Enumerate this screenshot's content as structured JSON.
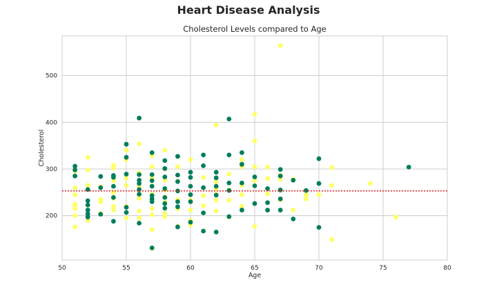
{
  "figure": {
    "suptitle": "Heart Disease Analysis"
  },
  "chart_data": {
    "type": "scatter",
    "title": "Cholesterol Levels compared to Age",
    "xlabel": "Age",
    "ylabel": "Cholesterol",
    "xlim": [
      50,
      80
    ],
    "ylim": [
      105,
      585
    ],
    "xticks": [
      50,
      55,
      60,
      65,
      70,
      75,
      80
    ],
    "yticks": [
      200,
      300,
      400,
      500
    ],
    "grid": true,
    "reference_line": {
      "y": 253,
      "color": "#e41a1c",
      "style": "dotted"
    },
    "series": [
      {
        "color": "#ffff66",
        "x": [
          51,
          51,
          51,
          51,
          51,
          51,
          51,
          51,
          51,
          52,
          52,
          52,
          52,
          52,
          53,
          53,
          53,
          53,
          53,
          54,
          54,
          54,
          54,
          54,
          54,
          54,
          55,
          55,
          55,
          55,
          55,
          55,
          56,
          56,
          56,
          56,
          56,
          56,
          56,
          57,
          57,
          57,
          57,
          57,
          57,
          57,
          57,
          57,
          58,
          58,
          58,
          58,
          58,
          58,
          58,
          58,
          59,
          59,
          59,
          59,
          59,
          60,
          60,
          60,
          60,
          60,
          60,
          61,
          61,
          61,
          62,
          62,
          62,
          62,
          62,
          62,
          63,
          63,
          63,
          63,
          64,
          64,
          64,
          64,
          64,
          64,
          65,
          65,
          65,
          65,
          65,
          66,
          66,
          66,
          67,
          67,
          67,
          67,
          67,
          68,
          68,
          69,
          69,
          70,
          71,
          71,
          71,
          74,
          76
        ],
        "y": [
          305,
          295,
          260,
          245,
          225,
          215,
          200,
          176,
          222,
          325,
          298,
          265,
          222,
          190,
          262,
          235,
          205,
          230,
          204,
          308,
          302,
          275,
          250,
          212,
          237,
          220,
          340,
          320,
          280,
          265,
          220,
          195,
          292,
          262,
          247,
          237,
          210,
          195,
          354,
          328,
          305,
          280,
          264,
          246,
          215,
          202,
          170,
          130,
          340,
          300,
          276,
          255,
          240,
          229,
          205,
          198,
          305,
          274,
          235,
          215,
          177,
          320,
          245,
          233,
          190,
          180,
          212,
          282,
          243,
          221,
          394,
          272,
          257,
          245,
          233,
          210,
          289,
          255,
          233,
          197,
          320,
          305,
          265,
          245,
          220,
          212,
          417,
          360,
          305,
          275,
          177,
          304,
          280,
          247,
          564,
          287,
          278,
          255,
          234,
          278,
          212,
          245,
          236,
          245,
          303,
          265,
          149,
          269,
          197
        ]
      },
      {
        "color": "#007d5a",
        "x": [
          51,
          51,
          51,
          52,
          52,
          52,
          52,
          52,
          52,
          53,
          53,
          53,
          54,
          54,
          54,
          54,
          54,
          55,
          55,
          55,
          55,
          55,
          56,
          56,
          56,
          56,
          56,
          56,
          56,
          57,
          57,
          57,
          57,
          57,
          57,
          57,
          57,
          58,
          58,
          58,
          58,
          58,
          58,
          58,
          59,
          59,
          59,
          59,
          59,
          59,
          59,
          60,
          60,
          60,
          60,
          60,
          60,
          61,
          61,
          61,
          61,
          61,
          62,
          62,
          62,
          62,
          62,
          63,
          63,
          63,
          63,
          63,
          64,
          64,
          64,
          64,
          65,
          65,
          65,
          66,
          66,
          66,
          67,
          67,
          67,
          67,
          67,
          68,
          68,
          69,
          70,
          70,
          70,
          77
        ],
        "y": [
          306,
          298,
          285,
          256,
          232,
          223,
          212,
          204,
          197,
          284,
          260,
          203,
          286,
          282,
          263,
          239,
          188,
          353,
          325,
          289,
          218,
          207,
          409,
          288,
          276,
          269,
          256,
          246,
          184,
          335,
          288,
          275,
          263,
          243,
          236,
          230,
          131,
          318,
          301,
          283,
          258,
          239,
          226,
          216,
          327,
          287,
          273,
          253,
          230,
          219,
          176,
          293,
          282,
          263,
          245,
          230,
          186,
          330,
          307,
          260,
          206,
          167,
          293,
          281,
          263,
          244,
          165,
          407,
          330,
          270,
          254,
          198,
          335,
          310,
          270,
          212,
          283,
          264,
          226,
          258,
          228,
          212,
          299,
          285,
          255,
          236,
          212,
          276,
          193,
          254,
          322,
          269,
          175,
          304
        ]
      }
    ]
  }
}
